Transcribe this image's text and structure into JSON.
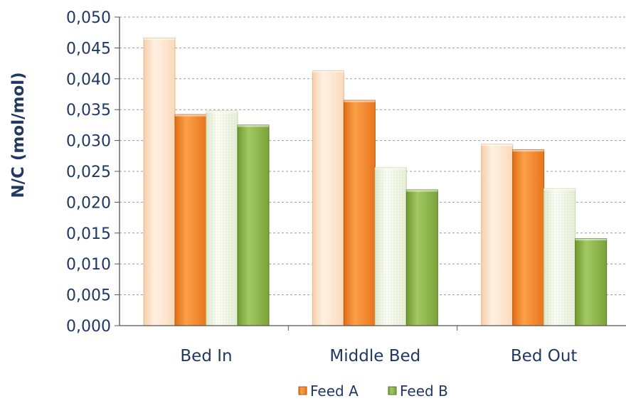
{
  "chart_data": {
    "type": "bar",
    "title": "",
    "xlabel": "",
    "ylabel": "N/C (mol/mol)",
    "ylim": [
      0,
      0.05
    ],
    "y_ticks": [
      "0,000",
      "0,005",
      "0,010",
      "0,015",
      "0,020",
      "0,025",
      "0,030",
      "0,035",
      "0,040",
      "0,045",
      "0,050"
    ],
    "grid": true,
    "legend_position": "bottom",
    "categories": [
      "Bed In",
      "Middle Bed",
      "Bed Out"
    ],
    "series": [
      {
        "key": "a_light",
        "name": "",
        "values": [
          0.0466,
          0.0413,
          0.0294
        ],
        "color": "#fde2c8"
      },
      {
        "key": "a_dark",
        "name": "Feed A",
        "values": [
          0.0342,
          0.0365,
          0.0285
        ],
        "color": "#f58a2e"
      },
      {
        "key": "b_light",
        "name": "",
        "values": [
          0.0348,
          0.0256,
          0.0222
        ],
        "color": "#eef4e2"
      },
      {
        "key": "b_dark",
        "name": "Feed B",
        "values": [
          0.0325,
          0.022,
          0.0141
        ],
        "color": "#8db446"
      }
    ]
  },
  "legend": {
    "items": [
      {
        "label": "Feed A",
        "color": "#f58a2e"
      },
      {
        "label": "Feed B",
        "color": "#8db446"
      }
    ]
  }
}
